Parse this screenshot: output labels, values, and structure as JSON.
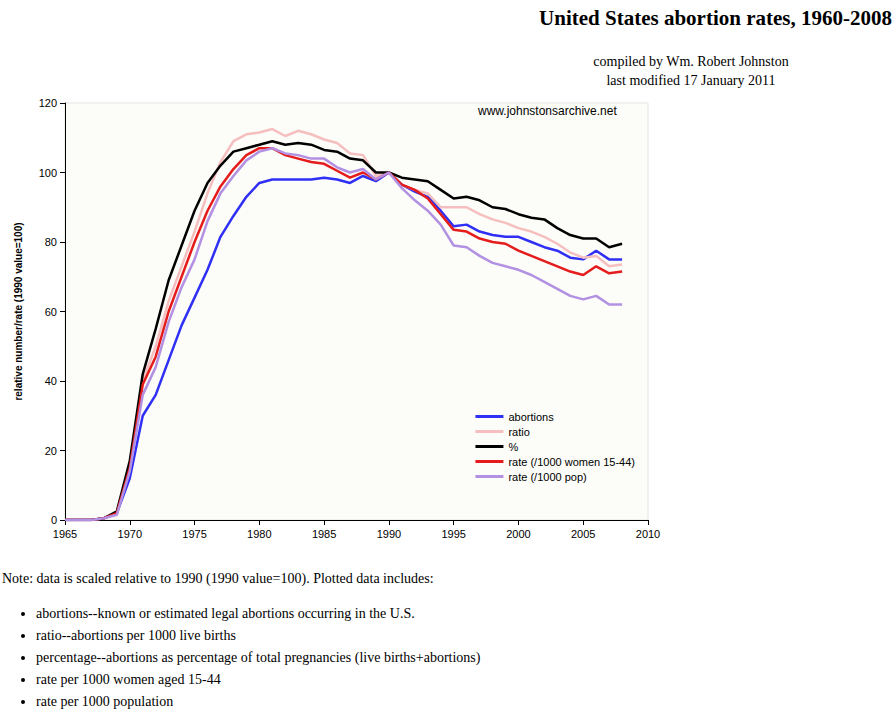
{
  "chart_data": {
    "type": "line",
    "title": "United States abortion rates, 1960-2008",
    "subtitle": [
      "compiled by Wm. Robert Johnston",
      "last modified 17 January 2011"
    ],
    "annotations": [
      "www.johnstonsarchive.net"
    ],
    "y_label": "relative number/rate (1990 value=100)",
    "note": "Note: data is scaled relative to 1990 (1990 value=100). Plotted data includes:",
    "note_items": [
      "abortions--known or estimated legal abortions occurring in the U.S.",
      "ratio--abortions per 1000 live births",
      "percentage--abortions as percentage of total pregnancies (live births+abortions)",
      "rate per 1000 women aged 15-44",
      "rate per 1000 population"
    ],
    "x": [
      1965,
      1966,
      1967,
      1968,
      1969,
      1970,
      1971,
      1972,
      1973,
      1974,
      1975,
      1976,
      1977,
      1978,
      1979,
      1980,
      1981,
      1982,
      1983,
      1984,
      1985,
      1986,
      1987,
      1988,
      1989,
      1990,
      1991,
      1992,
      1993,
      1994,
      1995,
      1996,
      1997,
      1998,
      1999,
      2000,
      2001,
      2002,
      2003,
      2004,
      2005,
      2006,
      2007,
      2008
    ],
    "series": [
      {
        "name": "abortions",
        "color": "#2f2ff5",
        "values": [
          0,
          0,
          0,
          0.5,
          2,
          12,
          30,
          36,
          46,
          56,
          64,
          72,
          81.5,
          87.5,
          93,
          97,
          98,
          98,
          98,
          98,
          98.5,
          98,
          97,
          99,
          97.5,
          100,
          96.5,
          94.5,
          93,
          89,
          84.5,
          85,
          83,
          82,
          81.5,
          81.5,
          80,
          78.5,
          77.5,
          75.5,
          75,
          77.5,
          75,
          75
        ]
      },
      {
        "name": "ratio",
        "color": "#f5bfbf",
        "values": [
          0,
          0,
          0,
          0.5,
          2,
          16,
          40,
          50,
          63,
          73,
          83,
          94,
          103,
          109,
          111,
          111.5,
          112.5,
          110.5,
          112,
          111,
          109.5,
          108.5,
          105.5,
          105,
          99,
          100,
          96.5,
          95,
          94,
          90,
          90,
          90,
          88,
          86.5,
          85.5,
          84,
          83,
          81.5,
          79.5,
          77,
          75.5,
          76,
          73,
          73.5
        ]
      },
      {
        "name": "%",
        "color": "#000000",
        "values": [
          0,
          0,
          0,
          0.5,
          2.5,
          17,
          42,
          55,
          69,
          79,
          89,
          97,
          102,
          106,
          107,
          108,
          109,
          108,
          108.5,
          108,
          106.5,
          106,
          104,
          103.5,
          100,
          100,
          98.5,
          98,
          97.5,
          95,
          92.5,
          93,
          92,
          90,
          89.5,
          88,
          87,
          86.5,
          84,
          82,
          81,
          81,
          78.5,
          79.5
        ]
      },
      {
        "name": "rate (/1000 women 15-44)",
        "color": "#e41c1c",
        "values": [
          0,
          0,
          0,
          0.5,
          2,
          15,
          39,
          47,
          60,
          70,
          80,
          89,
          96,
          101,
          105,
          107,
          107,
          105,
          104,
          103,
          102.5,
          100.5,
          98.5,
          100,
          98,
          100,
          96.5,
          95,
          92.5,
          88,
          83.5,
          83,
          81,
          80,
          79.5,
          77.5,
          76,
          74.5,
          73,
          71.5,
          70.5,
          73,
          71,
          71.5
        ]
      },
      {
        "name": "rate (/1000 pop)",
        "color": "#b290e2",
        "values": [
          0,
          0,
          0,
          0.5,
          1.5,
          14,
          36,
          44,
          57,
          67,
          75,
          86,
          94,
          99,
          103.5,
          106,
          107,
          105.5,
          105,
          104,
          104,
          101.5,
          100,
          101,
          98,
          100,
          95.5,
          92,
          89,
          85,
          79,
          78.5,
          76,
          74,
          73,
          72,
          70.5,
          68.5,
          66.5,
          64.5,
          63.5,
          64.5,
          62,
          62
        ]
      }
    ],
    "xlim": [
      1965,
      2010
    ],
    "xticks": [
      1965,
      1970,
      1975,
      1980,
      1985,
      1990,
      1995,
      2000,
      2005,
      2010
    ],
    "ylim": [
      0,
      120
    ],
    "yticks": [
      0,
      20,
      40,
      60,
      80,
      100,
      120
    ],
    "grid": false,
    "legend": "lower right"
  }
}
